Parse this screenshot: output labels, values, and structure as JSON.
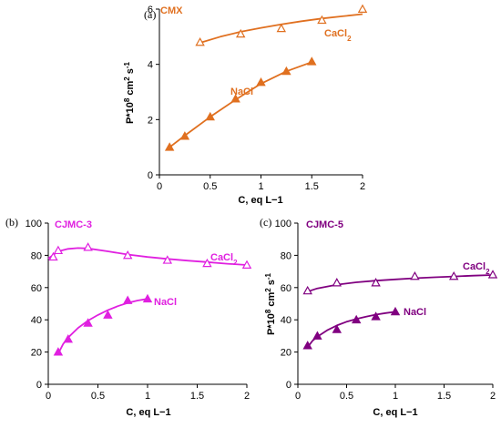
{
  "chart_data": [
    {
      "type": "scatter",
      "panel": "(a)",
      "title": "CMX",
      "color": "#e07020",
      "xlabel": "C, eq L−1",
      "ylabel": "P*10⁸ cm² s⁻¹",
      "xlim": [
        0,
        2
      ],
      "ylim": [
        0,
        6
      ],
      "xticks": [
        "0",
        "0.5",
        "1",
        "1.5",
        "2"
      ],
      "yticks": [
        "0",
        "2",
        "4",
        "6"
      ],
      "xtick_values": [
        0,
        0.5,
        1,
        1.5,
        2
      ],
      "ytick_values": [
        0,
        2,
        4,
        6
      ],
      "series": [
        {
          "name": "CaCl₂",
          "marker": "open-triangle",
          "x": [
            0.4,
            0.8,
            1.2,
            1.6,
            2.0
          ],
          "y": [
            4.8,
            5.1,
            5.3,
            5.6,
            6.0
          ],
          "fit_x": [
            0.4,
            0.6,
            0.8,
            1.0,
            1.2,
            1.4,
            1.6,
            1.8,
            2.0
          ],
          "fit_y": [
            4.78,
            5.0,
            5.18,
            5.32,
            5.45,
            5.56,
            5.66,
            5.74,
            5.82
          ]
        },
        {
          "name": "NaCl",
          "marker": "filled-triangle",
          "x": [
            0.1,
            0.25,
            0.5,
            0.75,
            1.0,
            1.25,
            1.5
          ],
          "y": [
            1.0,
            1.4,
            2.1,
            2.75,
            3.35,
            3.75,
            4.1
          ],
          "fit_x": [
            0.1,
            0.25,
            0.5,
            0.75,
            1.0,
            1.25,
            1.5
          ],
          "fit_y": [
            1.0,
            1.42,
            2.1,
            2.72,
            3.3,
            3.75,
            4.08
          ]
        }
      ]
    },
    {
      "type": "scatter",
      "panel": "(b)",
      "title": "CJMC-3",
      "color": "#e020e0",
      "xlabel": "C, eq L−1",
      "ylabel": "",
      "xlim": [
        0,
        2
      ],
      "ylim": [
        0,
        100
      ],
      "xticks": [
        "0",
        "0.5",
        "1",
        "1.5",
        "2"
      ],
      "yticks": [
        "0",
        "20",
        "40",
        "60",
        "80",
        "100"
      ],
      "xtick_values": [
        0,
        0.5,
        1,
        1.5,
        2
      ],
      "ytick_values": [
        0,
        20,
        40,
        60,
        80,
        100
      ],
      "series": [
        {
          "name": "CaCl₂",
          "marker": "open-triangle",
          "x": [
            0.05,
            0.1,
            0.4,
            0.8,
            1.2,
            1.6,
            2.0
          ],
          "y": [
            79,
            83,
            85,
            80,
            77,
            75,
            74
          ],
          "fit_x": [
            0.0,
            0.1,
            0.2,
            0.3,
            0.4,
            0.6,
            0.8,
            1.0,
            1.2,
            1.4,
            1.6,
            1.8,
            2.0
          ],
          "fit_y": [
            78,
            82.5,
            84,
            84.5,
            84.3,
            82.5,
            80.5,
            79,
            77.8,
            76.7,
            75.8,
            74.8,
            74
          ]
        },
        {
          "name": "NaCl",
          "marker": "filled-triangle",
          "x": [
            0.1,
            0.2,
            0.4,
            0.6,
            0.8,
            1.0
          ],
          "y": [
            20,
            28,
            38,
            43,
            52,
            53
          ],
          "fit_x": [
            0.1,
            0.15,
            0.2,
            0.3,
            0.4,
            0.5,
            0.6,
            0.7,
            0.8,
            0.9,
            1.0
          ],
          "fit_y": [
            19,
            25,
            29,
            35,
            39.5,
            43,
            46,
            48.5,
            50.5,
            52,
            53
          ]
        }
      ]
    },
    {
      "type": "scatter",
      "panel": "(c)",
      "title": "CJMC-5",
      "color": "#800080",
      "xlabel": "C, eq L−1",
      "ylabel": "P*10⁸ cm² s⁻¹",
      "xlim": [
        0,
        2
      ],
      "ylim": [
        0,
        100
      ],
      "xticks": [
        "0",
        "0.5",
        "1",
        "1.5",
        "2"
      ],
      "yticks": [
        "0",
        "20",
        "40",
        "60",
        "80",
        "100"
      ],
      "xtick_values": [
        0,
        0.5,
        1,
        1.5,
        2
      ],
      "ytick_values": [
        0,
        20,
        40,
        60,
        80,
        100
      ],
      "series": [
        {
          "name": "CaCl₂",
          "marker": "open-triangle",
          "x": [
            0.1,
            0.4,
            0.8,
            1.2,
            1.6,
            2.0
          ],
          "y": [
            58,
            63,
            63,
            67,
            67,
            68
          ],
          "fit_x": [
            0.1,
            0.2,
            0.4,
            0.6,
            0.8,
            1.0,
            1.2,
            1.4,
            1.6,
            1.8,
            2.0
          ],
          "fit_y": [
            57.5,
            59.5,
            61.8,
            63.3,
            64.3,
            65.1,
            65.8,
            66.4,
            66.9,
            67.4,
            67.8
          ]
        },
        {
          "name": "NaCl",
          "marker": "filled-triangle",
          "x": [
            0.1,
            0.2,
            0.4,
            0.6,
            0.8,
            1.0
          ],
          "y": [
            24,
            30,
            34,
            40,
            42,
            45
          ],
          "fit_x": [
            0.1,
            0.15,
            0.2,
            0.3,
            0.4,
            0.5,
            0.6,
            0.7,
            0.8,
            0.9,
            1.0
          ],
          "fit_y": [
            23,
            27,
            29.5,
            33.5,
            36.5,
            38.8,
            40.5,
            42,
            43.2,
            44.2,
            45
          ]
        }
      ]
    }
  ]
}
